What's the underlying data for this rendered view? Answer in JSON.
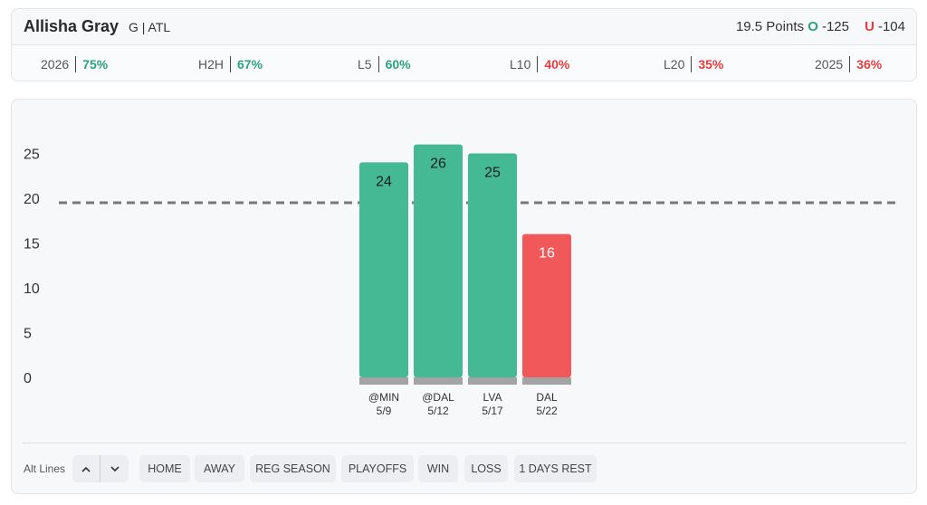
{
  "player": {
    "name": "Allisha Gray",
    "meta": "G | ATL"
  },
  "line": {
    "text": "19.5 Points",
    "over_mark": "O",
    "over_odds": "-125",
    "under_mark": "U",
    "under_odds": "-104"
  },
  "stats": [
    {
      "label": "2026",
      "value": "75%",
      "status": "green"
    },
    {
      "label": "H2H",
      "value": "67%",
      "status": "green"
    },
    {
      "label": "L5",
      "value": "60%",
      "status": "green"
    },
    {
      "label": "L10",
      "value": "40%",
      "status": "red"
    },
    {
      "label": "L20",
      "value": "35%",
      "status": "red"
    },
    {
      "label": "2025",
      "value": "36%",
      "status": "red"
    }
  ],
  "colors": {
    "over": "#45b994",
    "under": "#f0585a",
    "baseline": "#a3a3a3",
    "line": "#777777",
    "green_text": "#2aa37a",
    "red_text": "#e53d3d"
  },
  "chart_data": {
    "type": "bar",
    "categories": [
      "@MIN\n5/9",
      "@DAL\n5/12",
      "LVA\n5/17",
      "DAL\n5/22"
    ],
    "opponents": [
      "@MIN",
      "@DAL",
      "LVA",
      "DAL"
    ],
    "dates": [
      "5/9",
      "5/12",
      "5/17",
      "5/22"
    ],
    "values": [
      24,
      26,
      25,
      16
    ],
    "outcome": [
      "over",
      "over",
      "over",
      "under"
    ],
    "reference_line": 19.5,
    "yticks": [
      0,
      5,
      10,
      15,
      20,
      25
    ],
    "ylim": [
      0,
      26
    ],
    "grid": false,
    "title": "",
    "xlabel": "",
    "ylabel": ""
  },
  "footer": {
    "alt_lines_label": "Alt Lines",
    "up_icon": "chevron-up-icon",
    "down_icon": "chevron-down-icon",
    "filters": [
      "HOME",
      "AWAY",
      "REG SEASON",
      "PLAYOFFS",
      "WIN",
      "LOSS",
      "1 DAYS REST"
    ]
  }
}
